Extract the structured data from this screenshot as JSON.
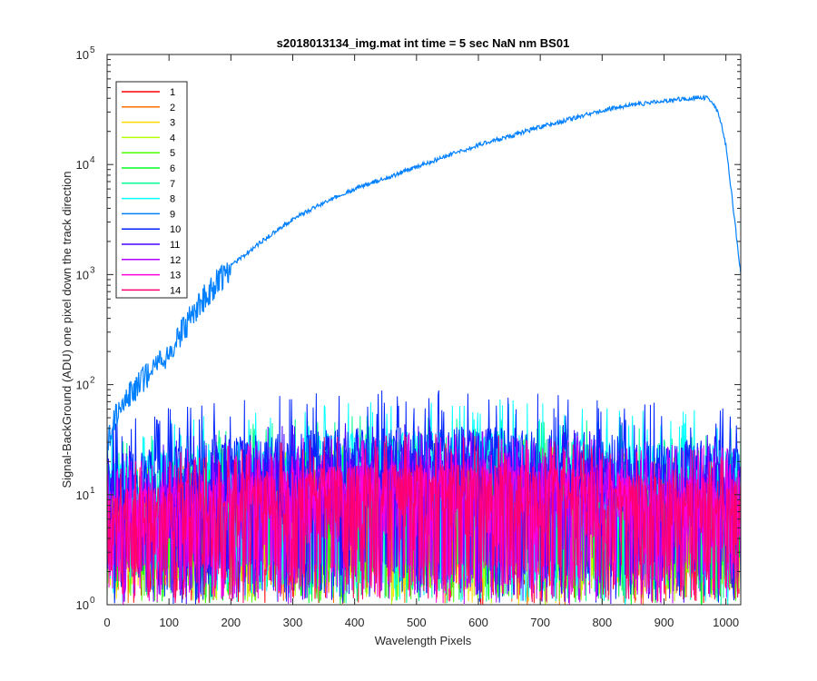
{
  "chart_data": {
    "type": "line",
    "title": "s2018013134_img.mat int time = 5 sec  NaN nm BS01",
    "xlabel": "Wavelength Pixels",
    "ylabel": "Signal-BackGround (ADU) one pixel down the track direction",
    "xlim": [
      0,
      1024
    ],
    "ylim": [
      1,
      100000
    ],
    "yscale": "log",
    "x_ticks": [
      "0",
      "100",
      "200",
      "300",
      "400",
      "500",
      "600",
      "700",
      "800",
      "900",
      "1000"
    ],
    "x_tick_values": [
      0,
      100,
      200,
      300,
      400,
      500,
      600,
      700,
      800,
      900,
      1000
    ],
    "y_ticks": [
      {
        "base": "10",
        "exp": "0",
        "value": 1
      },
      {
        "base": "10",
        "exp": "1",
        "value": 10
      },
      {
        "base": "10",
        "exp": "2",
        "value": 100
      },
      {
        "base": "10",
        "exp": "3",
        "value": 1000
      },
      {
        "base": "10",
        "exp": "4",
        "value": 10000
      },
      {
        "base": "10",
        "exp": "5",
        "value": 100000
      }
    ],
    "grid": false,
    "legend_position": "top-left",
    "main_series": {
      "name": "9",
      "color": "#0080FF",
      "x": [
        0,
        10,
        20,
        30,
        50,
        80,
        100,
        150,
        200,
        250,
        300,
        350,
        400,
        450,
        500,
        550,
        600,
        650,
        700,
        750,
        800,
        850,
        900,
        940,
        960,
        970,
        980,
        990,
        1000,
        1010,
        1024
      ],
      "y": [
        30,
        45,
        60,
        75,
        100,
        140,
        200,
        550,
        1200,
        2000,
        3200,
        4500,
        6000,
        7500,
        9500,
        12000,
        15000,
        18000,
        22000,
        26000,
        31000,
        35000,
        38000,
        40000,
        41000,
        40000,
        36000,
        27000,
        15000,
        5000,
        1000
      ]
    },
    "noise_series": [
      {
        "name": "1",
        "color": "#FF0000",
        "level": 9,
        "peak": 25
      },
      {
        "name": "2",
        "color": "#FF6E00",
        "level": 9,
        "peak": 25
      },
      {
        "name": "3",
        "color": "#FFDC00",
        "level": 9,
        "peak": 25
      },
      {
        "name": "4",
        "color": "#B6FF00",
        "level": 9,
        "peak": 25
      },
      {
        "name": "5",
        "color": "#48FF00",
        "level": 10,
        "peak": 28
      },
      {
        "name": "6",
        "color": "#00FF25",
        "level": 10,
        "peak": 28
      },
      {
        "name": "7",
        "color": "#00FF93",
        "level": 14,
        "peak": 45
      },
      {
        "name": "8",
        "color": "#00FFFF",
        "level": 20,
        "peak": 65
      },
      {
        "name": "10",
        "color": "#0025FF",
        "level": 22,
        "peak": 75
      },
      {
        "name": "11",
        "color": "#4800FF",
        "level": 14,
        "peak": 40
      },
      {
        "name": "12",
        "color": "#B600FF",
        "level": 11,
        "peak": 32
      },
      {
        "name": "13",
        "color": "#FF00DC",
        "level": 10,
        "peak": 30
      },
      {
        "name": "14",
        "color": "#FF006E",
        "level": 10,
        "peak": 30
      }
    ],
    "legend": [
      {
        "label": "1",
        "color": "#FF0000"
      },
      {
        "label": "2",
        "color": "#FF6E00"
      },
      {
        "label": "3",
        "color": "#FFDC00"
      },
      {
        "label": "4",
        "color": "#B6FF00"
      },
      {
        "label": "5",
        "color": "#48FF00"
      },
      {
        "label": "6",
        "color": "#00FF25"
      },
      {
        "label": "7",
        "color": "#00FF93"
      },
      {
        "label": "8",
        "color": "#00FFFF"
      },
      {
        "label": "9",
        "color": "#0080FF"
      },
      {
        "label": "10",
        "color": "#0025FF"
      },
      {
        "label": "11",
        "color": "#4800FF"
      },
      {
        "label": "12",
        "color": "#B600FF"
      },
      {
        "label": "13",
        "color": "#FF00DC"
      },
      {
        "label": "14",
        "color": "#FF006E"
      }
    ]
  }
}
